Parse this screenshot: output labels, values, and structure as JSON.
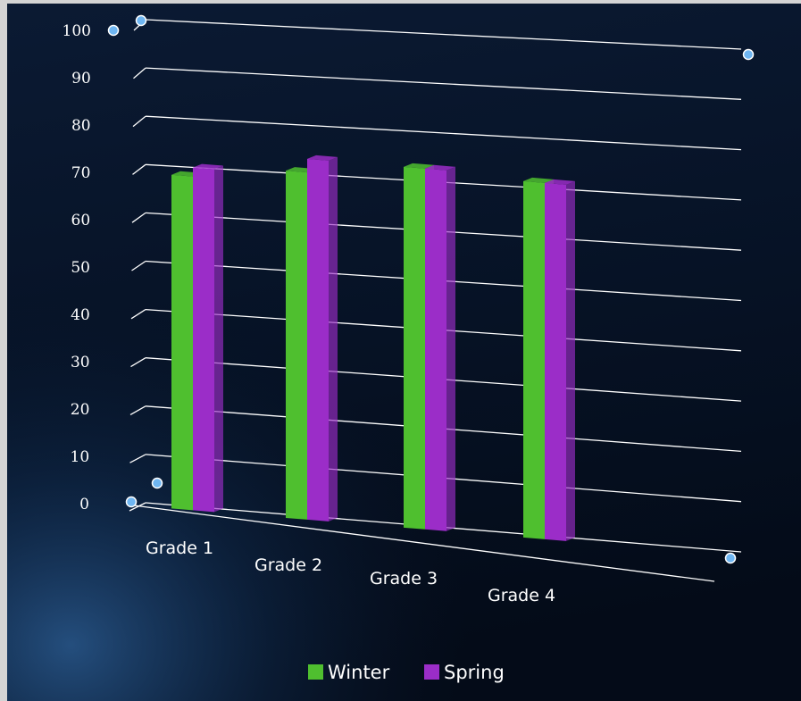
{
  "chart_data": {
    "type": "bar",
    "categories": [
      "Grade 1",
      "Grade 2",
      "Grade 3",
      "Grade 4"
    ],
    "series": [
      {
        "name": "Winter",
        "values": [
          74,
          77,
          80,
          79
        ]
      },
      {
        "name": "Spring",
        "values": [
          76,
          80,
          80,
          79
        ]
      }
    ],
    "ylim": [
      0,
      100
    ],
    "yticks": [
      "0",
      "10",
      "20",
      "30",
      "40",
      "50",
      "60",
      "70",
      "80",
      "90",
      "100"
    ],
    "grid": true,
    "legend_position": "bottom",
    "colors": {
      "Winter": "#4fbf2f",
      "Spring": "#9b2dc8",
      "background": "#06101f",
      "grid": "#ffffff",
      "text": "#ffffff",
      "handle": "#6fb6f2"
    }
  }
}
